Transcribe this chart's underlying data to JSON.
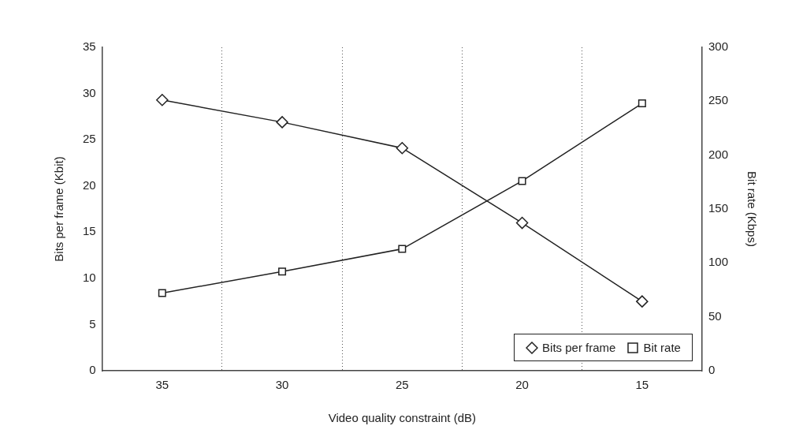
{
  "chart_data": {
    "type": "line",
    "xlabel": "Video quality constraint (dB)",
    "ylabel": "Bits per frame (Kbit)",
    "y2label": "Bit rate (Kbps)",
    "categories": [
      "35",
      "30",
      "25",
      "20",
      "15"
    ],
    "ylim": [
      0,
      35
    ],
    "yticks": [
      0,
      5,
      10,
      15,
      20,
      25,
      30,
      35
    ],
    "y2lim": [
      0,
      300
    ],
    "y2ticks": [
      0,
      50,
      100,
      150,
      200,
      250,
      300
    ],
    "grid": "x",
    "legend": "bottom right",
    "line_style": "solid",
    "series": [
      {
        "name": "Bits per frame",
        "color": "#222222",
        "marker": "diamond",
        "values": [
          29.3,
          26.9,
          24.1,
          16.0,
          7.5
        ]
      },
      {
        "name": "Bit rate",
        "color": "#222222",
        "marker": "square",
        "axis": "y2",
        "values": [
          72,
          92,
          113,
          176,
          248
        ]
      }
    ]
  }
}
